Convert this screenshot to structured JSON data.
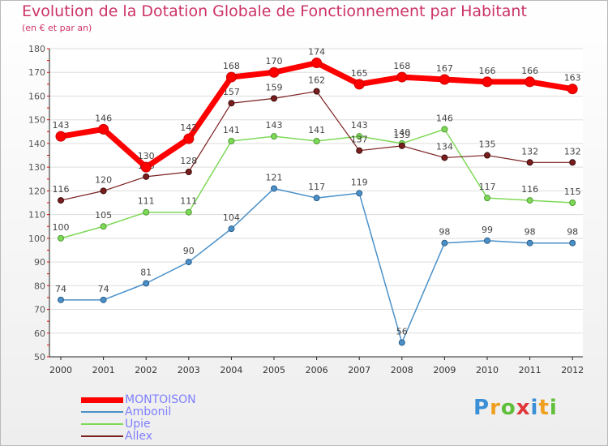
{
  "title": "Evolution de la Dotation Globale de Fonctionnement par Habitant",
  "subtitle": "(en € et par an)",
  "brand": "Proxiti",
  "chart_data": {
    "type": "line",
    "title": "Evolution de la Dotation Globale de Fonctionnement par Habitant",
    "ylabel": "(en € et par an)",
    "xlabel": "",
    "x": [
      "2000",
      "2001",
      "2002",
      "2003",
      "2004",
      "2005",
      "2006",
      "2007",
      "2008",
      "2009",
      "2010",
      "2011",
      "2012"
    ],
    "ylim": [
      50,
      180
    ],
    "yticks": [
      50,
      60,
      70,
      80,
      90,
      100,
      110,
      120,
      130,
      140,
      150,
      160,
      170,
      180
    ],
    "grid": "horizontal",
    "legend": "bottom-left",
    "series": [
      {
        "name": "Ambonil",
        "color": "#4a90c8",
        "values": [
          74,
          74,
          81,
          90,
          104,
          121,
          117,
          119,
          56,
          98,
          99,
          98,
          98
        ]
      },
      {
        "name": "Upie",
        "color": "#7ed957",
        "values": [
          100,
          105,
          111,
          111,
          141,
          143,
          141,
          143,
          140,
          146,
          117,
          116,
          115
        ]
      },
      {
        "name": "Allex",
        "color": "#7a1e1e",
        "values": [
          116,
          120,
          126,
          128,
          157,
          159,
          162,
          137,
          139,
          134,
          135,
          132,
          132
        ]
      },
      {
        "name": "MONTOISON",
        "color": "#ff0000",
        "values": [
          143,
          146,
          130,
          142,
          168,
          170,
          174,
          165,
          168,
          167,
          166,
          166,
          163
        ]
      }
    ]
  }
}
